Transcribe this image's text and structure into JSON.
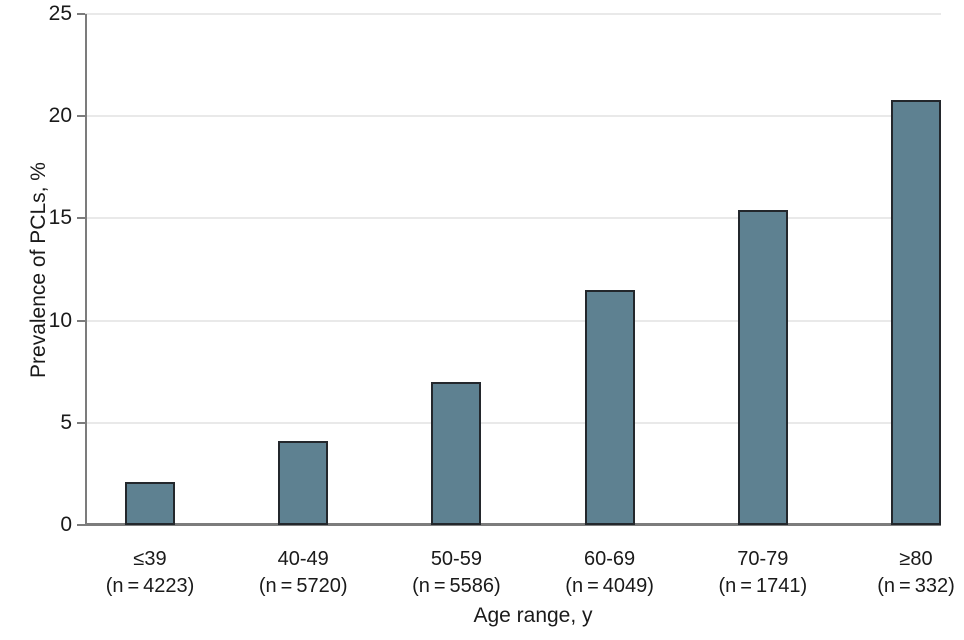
{
  "chart_data": {
    "type": "bar",
    "title": "",
    "xlabel": "Age range, y",
    "ylabel": "Prevalence of PCLs, %",
    "categories": [
      "≤39",
      "40-49",
      "50-59",
      "60-69",
      "70-79",
      "≥80"
    ],
    "n_labels": [
      "(n = 4223)",
      "(n = 5720)",
      "(n = 5586)",
      "(n = 4049)",
      "(n = 1741)",
      "(n = 332)"
    ],
    "values": [
      2.1,
      4.1,
      7.0,
      11.5,
      15.4,
      20.8
    ],
    "y_ticks": [
      0,
      5,
      10,
      15,
      20,
      25
    ],
    "ylim": [
      0,
      25
    ],
    "grid": true,
    "legend": "none",
    "colors": {
      "bar_fill": "#5E8191",
      "bar_border": "#23272c",
      "axis": "#7c7c7c",
      "gridline": "#e9e9e9",
      "text": "#1a1a1a"
    }
  }
}
